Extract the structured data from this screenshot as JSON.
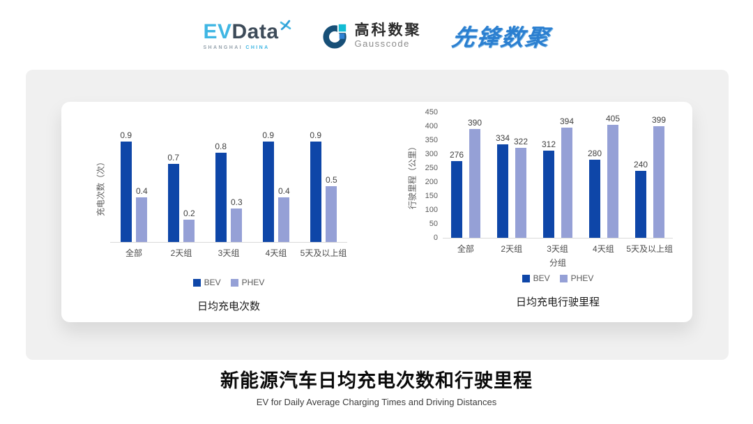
{
  "header": {
    "evdata": {
      "ev": "EV",
      "data": "Data",
      "tagline_left": "SHANGHAI",
      "tagline_right": "CHINA"
    },
    "gausscode": {
      "cn": "高科数聚",
      "en": "Gausscode"
    },
    "xianfeng": {
      "text": "先锋数聚"
    }
  },
  "footer": {
    "title": "新能源汽车日均充电次数和行驶里程",
    "subtitle": "EV for Daily Average Charging Times and Driving Distances"
  },
  "colors": {
    "bev": "#0e46a8",
    "phev": "#95a0d6",
    "axis_line": "#d9d9d9",
    "tick_text": "#595959"
  },
  "icons": {
    "evdata_mark": "x-star-icon",
    "gausscode_mark": "g-ring-icon"
  },
  "chart_data": [
    {
      "type": "bar",
      "title": "日均充电次数",
      "xlabel": "",
      "ylabel": "充电次数（次）",
      "categories": [
        "全部",
        "2天组",
        "3天组",
        "4天组",
        "5天及以上组"
      ],
      "series": [
        {
          "name": "BEV",
          "color": "#0e46a8",
          "values": [
            0.9,
            0.7,
            0.8,
            0.9,
            0.9
          ],
          "labels": [
            "0.9",
            "0.7",
            "0.8",
            "0.9",
            "0.9"
          ]
        },
        {
          "name": "PHEV",
          "color": "#95a0d6",
          "values": [
            0.4,
            0.2,
            0.3,
            0.4,
            0.5
          ],
          "labels": [
            "0.4",
            "0.2",
            "0.3",
            "0.4",
            "0.5"
          ]
        }
      ],
      "ylim": [
        0,
        1.0
      ],
      "yticks": [],
      "grid": false,
      "legend_position": "bottom"
    },
    {
      "type": "bar",
      "title": "日均充电行驶里程",
      "xlabel": "分组",
      "ylabel": "行驶里程（公里）",
      "categories": [
        "全部",
        "2天组",
        "3天组",
        "4天组",
        "5天及以上组"
      ],
      "series": [
        {
          "name": "BEV",
          "color": "#0e46a8",
          "values": [
            276,
            334,
            312,
            280,
            240
          ]
        },
        {
          "name": "PHEV",
          "color": "#95a0d6",
          "values": [
            390,
            322,
            394,
            405,
            399
          ]
        }
      ],
      "ylim": [
        0,
        450
      ],
      "yticks": [
        0,
        50,
        100,
        150,
        200,
        250,
        300,
        350,
        400,
        450
      ],
      "grid": false,
      "legend_position": "bottom"
    }
  ]
}
